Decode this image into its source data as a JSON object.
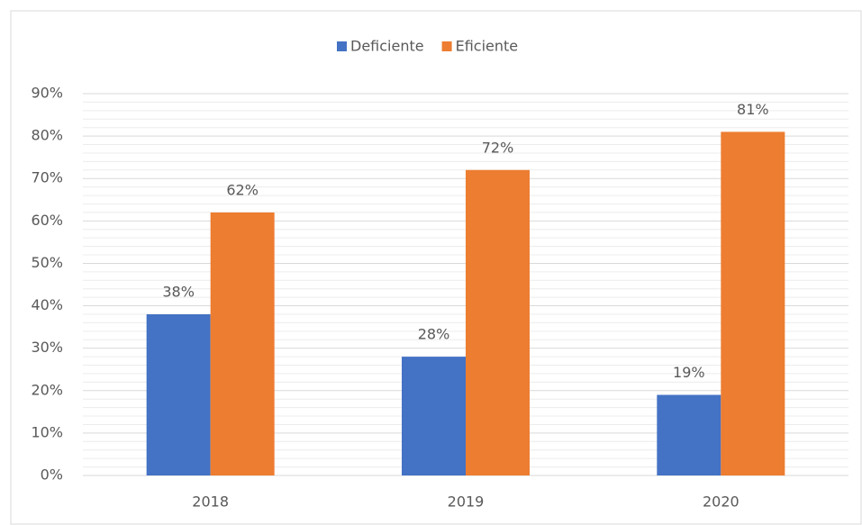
{
  "chart_data": {
    "type": "bar",
    "categories": [
      "2018",
      "2019",
      "2020"
    ],
    "series": [
      {
        "name": "Deficiente",
        "color": "#4472c4",
        "values": [
          38,
          28,
          19
        ],
        "value_labels": [
          "38%",
          "28%",
          "19%"
        ]
      },
      {
        "name": "Eficiente",
        "color": "#ed7d31",
        "values": [
          62,
          72,
          81
        ],
        "value_labels": [
          "62%",
          "72%",
          "81%"
        ]
      }
    ],
    "ylim": [
      0,
      90
    ],
    "yticks": [
      {
        "value": 0,
        "label": "0%"
      },
      {
        "value": 10,
        "label": "10%"
      },
      {
        "value": 20,
        "label": "20%"
      },
      {
        "value": 30,
        "label": "30%"
      },
      {
        "value": 40,
        "label": "40%"
      },
      {
        "value": 50,
        "label": "50%"
      },
      {
        "value": 60,
        "label": "60%"
      },
      {
        "value": 70,
        "label": "70%"
      },
      {
        "value": 80,
        "label": "80%"
      },
      {
        "value": 90,
        "label": "90%"
      }
    ],
    "grid": true,
    "minor_grid": true,
    "legend": "top"
  }
}
